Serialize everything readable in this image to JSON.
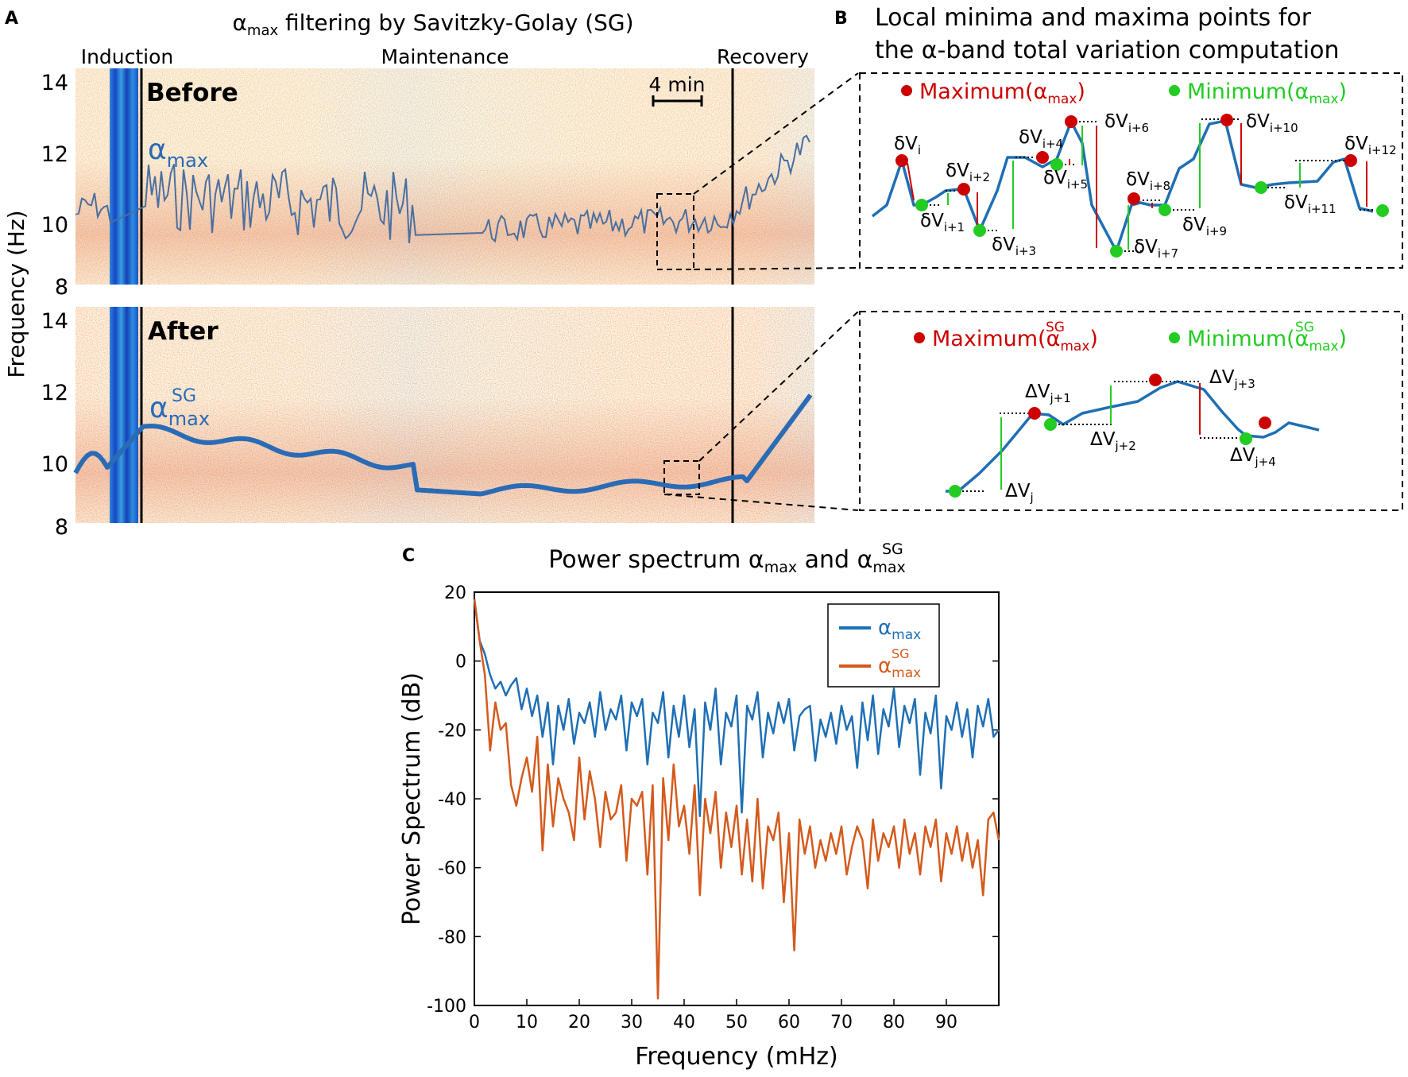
{
  "panel_a": {
    "letter": "A",
    "title": "αmax filtering by Savitzky-Golay (SG)",
    "title_alpha": "α",
    "title_sub": "max",
    "title_rest": " filtering by Savitzky-Golay (SG)",
    "phases": [
      "Induction",
      "Maintenance",
      "Recovery"
    ],
    "scale_bar": "4 min",
    "y_label": "Frequency (Hz)",
    "y_ticks": [
      "14",
      "12",
      "10",
      "8"
    ],
    "before": {
      "label": "Before",
      "series_alpha": "α",
      "series_sub": "max"
    },
    "after": {
      "label": "After",
      "series_alpha": "α",
      "series_sub": "max",
      "series_sup": "SG"
    }
  },
  "panel_b": {
    "letter": "B",
    "title_line1": "Local minima and maxima points for",
    "title_line2": "the α-band total variation computation",
    "top_legend": {
      "max": "Maximum(αmax)",
      "max_pre": "Maximum(α",
      "max_sub": "max",
      "min": "Minimum(αmax)",
      "min_pre": "Minimum(α",
      "min_sub": "max",
      "close": ")"
    },
    "bottom_legend": {
      "max_pre": "Maximum(α",
      "min_pre": "Minimum(α",
      "sub": "max",
      "sup": "SG",
      "close": ")"
    },
    "top_labels": [
      {
        "base": "δV",
        "sub": "i"
      },
      {
        "base": "δV",
        "sub": "i+1"
      },
      {
        "base": "δV",
        "sub": "i+2"
      },
      {
        "base": "δV",
        "sub": "i+3"
      },
      {
        "base": "δV",
        "sub": "i+4"
      },
      {
        "base": "δV",
        "sub": "i+5"
      },
      {
        "base": "δV",
        "sub": "i+6"
      },
      {
        "base": "δV",
        "sub": "i+7"
      },
      {
        "base": "δV",
        "sub": "i+8"
      },
      {
        "base": "δV",
        "sub": "i+9"
      },
      {
        "base": "δV",
        "sub": "i+10"
      },
      {
        "base": "δV",
        "sub": "i+11"
      },
      {
        "base": "δV",
        "sub": "i+12"
      }
    ],
    "bottom_labels": [
      {
        "base": "ΔV",
        "sub": "j"
      },
      {
        "base": "ΔV",
        "sub": "j+1"
      },
      {
        "base": "ΔV",
        "sub": "j+2"
      },
      {
        "base": "ΔV",
        "sub": "j+3"
      },
      {
        "base": "ΔV",
        "sub": "j+4"
      }
    ],
    "colors": {
      "max": "#cc0000",
      "min": "#22cc22",
      "line": "#1f6fb4"
    }
  },
  "chart_data": {
    "type": "line",
    "letter": "C",
    "title": "Power spectrum αmax and αmaxSG",
    "title_pre": "Power spectrum α",
    "title_sub1": "max",
    "title_mid": " and α",
    "title_sub2": "max",
    "title_sup2": "SG",
    "xlabel": "Frequency (mHz)",
    "ylabel": "Power Spectrum (dB)",
    "xlim": [
      0,
      100
    ],
    "ylim": [
      -100,
      20
    ],
    "x_ticks": [
      0,
      10,
      20,
      30,
      40,
      50,
      60,
      70,
      80,
      90
    ],
    "y_ticks": [
      20,
      0,
      -20,
      -40,
      -60,
      -80,
      -100
    ],
    "legend_position": "top-right",
    "series": [
      {
        "name": "αmax",
        "legend_base": "α",
        "legend_sub": "max",
        "legend_sup": "",
        "color": "#1f6fb4",
        "x": [
          0,
          1,
          2,
          3,
          4,
          5,
          6,
          7,
          8,
          9,
          10,
          11,
          12,
          13,
          14,
          15,
          16,
          17,
          18,
          19,
          20,
          21,
          22,
          23,
          24,
          25,
          26,
          27,
          28,
          29,
          30,
          31,
          32,
          33,
          34,
          35,
          36,
          37,
          38,
          39,
          40,
          41,
          42,
          43,
          44,
          45,
          46,
          47,
          48,
          49,
          50,
          51,
          52,
          53,
          54,
          55,
          56,
          57,
          58,
          59,
          60,
          61,
          62,
          63,
          64,
          65,
          66,
          67,
          68,
          69,
          70,
          71,
          72,
          73,
          74,
          75,
          76,
          77,
          78,
          79,
          80,
          81,
          82,
          83,
          84,
          85,
          86,
          87,
          88,
          89,
          90,
          91,
          92,
          93,
          94,
          95,
          96,
          97,
          98,
          99,
          100
        ],
        "values": [
          18,
          6,
          2,
          -4,
          -8,
          -6,
          -10,
          -7,
          -5,
          -14,
          -8,
          -16,
          -10,
          -22,
          -12,
          -30,
          -13,
          -20,
          -11,
          -24,
          -15,
          -18,
          -12,
          -22,
          -9,
          -20,
          -14,
          -17,
          -10,
          -26,
          -12,
          -16,
          -11,
          -30,
          -15,
          -18,
          -9,
          -28,
          -13,
          -22,
          -10,
          -25,
          -14,
          -45,
          -12,
          -20,
          -8,
          -30,
          -15,
          -19,
          -10,
          -44,
          -13,
          -17,
          -9,
          -28,
          -15,
          -21,
          -12,
          -18,
          -11,
          -26,
          -16,
          -14,
          -13,
          -29,
          -17,
          -22,
          -15,
          -24,
          -13,
          -20,
          -16,
          -31,
          -12,
          -23,
          -10,
          -27,
          -14,
          -19,
          -8,
          -25,
          -13,
          -18,
          -11,
          -33,
          -15,
          -21,
          -10,
          -37,
          -16,
          -20,
          -12,
          -22,
          -14,
          -28,
          -13,
          -19,
          -11,
          -22,
          -20
        ]
      },
      {
        "name": "αmaxSG",
        "legend_base": "α",
        "legend_sub": "max",
        "legend_sup": "SG",
        "color": "#d45a1c",
        "x": [
          0,
          1,
          2,
          3,
          4,
          5,
          6,
          7,
          8,
          9,
          10,
          11,
          12,
          13,
          14,
          15,
          16,
          17,
          18,
          19,
          20,
          21,
          22,
          23,
          24,
          25,
          26,
          27,
          28,
          29,
          30,
          31,
          32,
          33,
          34,
          35,
          36,
          37,
          38,
          39,
          40,
          41,
          42,
          43,
          44,
          45,
          46,
          47,
          48,
          49,
          50,
          51,
          52,
          53,
          54,
          55,
          56,
          57,
          58,
          59,
          60,
          61,
          62,
          63,
          64,
          65,
          66,
          67,
          68,
          69,
          70,
          71,
          72,
          73,
          74,
          75,
          76,
          77,
          78,
          79,
          80,
          81,
          82,
          83,
          84,
          85,
          86,
          87,
          88,
          89,
          90,
          91,
          92,
          93,
          94,
          95,
          96,
          97,
          98,
          99,
          100
        ],
        "values": [
          18,
          6,
          -4,
          -26,
          -12,
          -20,
          -18,
          -36,
          -42,
          -34,
          -28,
          -38,
          -22,
          -55,
          -30,
          -48,
          -34,
          -40,
          -44,
          -52,
          -28,
          -46,
          -32,
          -40,
          -54,
          -38,
          -46,
          -44,
          -36,
          -58,
          -40,
          -42,
          -38,
          -62,
          -36,
          -98,
          -34,
          -52,
          -30,
          -48,
          -42,
          -56,
          -36,
          -68,
          -40,
          -50,
          -38,
          -60,
          -44,
          -54,
          -42,
          -62,
          -46,
          -64,
          -40,
          -66,
          -48,
          -52,
          -44,
          -70,
          -50,
          -84,
          -46,
          -56,
          -48,
          -60,
          -52,
          -58,
          -50,
          -56,
          -48,
          -62,
          -54,
          -48,
          -52,
          -66,
          -46,
          -58,
          -50,
          -54,
          -48,
          -60,
          -46,
          -56,
          -50,
          -62,
          -48,
          -54,
          -46,
          -64,
          -50,
          -56,
          -48,
          -58,
          -50,
          -60,
          -52,
          -68,
          -46,
          -44,
          -52
        ]
      }
    ]
  }
}
